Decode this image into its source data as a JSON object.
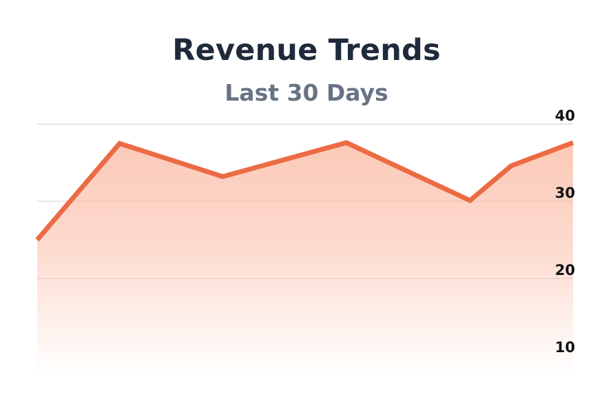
{
  "chart_data": {
    "type": "area",
    "title": "Revenue Trends",
    "subtitle": "Last 30 Days",
    "xlabel": "",
    "ylabel": "",
    "x": [
      1,
      5,
      10,
      16,
      22,
      24,
      27
    ],
    "series": [
      {
        "values": [
          25,
          37.5,
          33.2,
          37.6,
          30.1,
          34.6,
          37.6
        ],
        "color": "#ec6b44",
        "fill_color": "#fbb49c"
      }
    ],
    "y_ticks": [
      10,
      20,
      30,
      40
    ],
    "ylim": [
      7.3,
      41.8
    ],
    "xlim": [
      1,
      27
    ],
    "grid": true,
    "y_axis_position": "right",
    "legend": "none"
  }
}
